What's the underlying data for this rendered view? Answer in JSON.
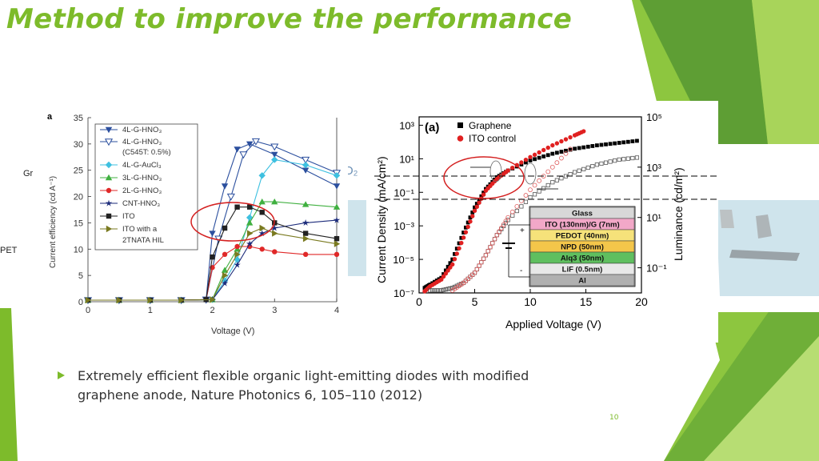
{
  "slide": {
    "title": "Method to improve the performance",
    "bullet": "Extremely efficient flexible organic light-emitting diodes with modified\ngraphene anode, Nature Photonics 6, 105–110 (2012)",
    "page_number": "10",
    "fragments": {
      "left_gr": "Gr",
      "left_pet": "PET",
      "o2": "O₂"
    }
  },
  "colors": {
    "accent": "#7DBB2B",
    "dark_green": "#4E8A2E",
    "annotation_red": "#D42020"
  },
  "left_chart": {
    "panel_label": "a",
    "xlabel": "Voltage (V)",
    "ylabel": "Current efficiency (cd A⁻¹)",
    "x_ticks": [
      "0",
      "1",
      "2",
      "3",
      "4"
    ],
    "y_ticks": [
      "0",
      "5",
      "10",
      "15",
      "20",
      "25",
      "30",
      "35"
    ],
    "legend": [
      "4L-G-HNO₃",
      "4L-G-HNO₃",
      "(C545T: 0.5%)",
      "4L-G-AuCl₃",
      "3L-G-HNO₃",
      "2L-G-HNO₃",
      "CNT-HNO₃",
      "ITO",
      "ITO with a",
      "2TNATA HIL"
    ]
  },
  "right_chart": {
    "panel_label": "(a)",
    "xlabel": "Applied Voltage (V)",
    "ylabel_left": "Current Density (mA/cm²)",
    "ylabel_right": "Luminance (cd/m²)",
    "x_ticks": [
      "0",
      "5",
      "10",
      "15",
      "20"
    ],
    "y_left_ticks": [
      "10³",
      "10¹",
      "10⁻¹",
      "10⁻³",
      "10⁻⁵",
      "10⁻⁷"
    ],
    "y_right_ticks": [
      "10⁵",
      "10³",
      "10¹",
      "10⁻¹"
    ],
    "legend": [
      "Graphene",
      "ITO control"
    ],
    "stack_layers": [
      "Glass",
      "ITO (130nm)/G (7nm)",
      "PEDOT (40nm)",
      "NPD (50nm)",
      "Alq3 (50nm)",
      "LiF (0.5nm)",
      "Al"
    ],
    "plus": "+",
    "minus": "-"
  },
  "chart_data": [
    {
      "type": "line",
      "xlabel": "Voltage (V)",
      "ylabel": "Current efficiency (cd A⁻¹)",
      "xlim": [
        0,
        4
      ],
      "ylim": [
        0,
        35
      ],
      "series": [
        {
          "name": "4L-G-HNO₃",
          "color": "#2B4F9E",
          "marker": "tri-down",
          "x": [
            0,
            0.5,
            1,
            1.5,
            1.9,
            2.0,
            2.2,
            2.4,
            2.6,
            3.0,
            3.5,
            4.0
          ],
          "y": [
            0.3,
            0.3,
            0.3,
            0.3,
            0.4,
            13,
            22,
            29,
            30,
            28,
            25,
            22
          ]
        },
        {
          "name": "4L-G-HNO₃ (C545T: 0.5%)",
          "color": "#2B4F9E",
          "marker": "tri-down-open",
          "x": [
            0,
            0.5,
            1,
            1.5,
            1.9,
            2.1,
            2.3,
            2.5,
            2.7,
            3.0,
            3.5,
            4.0
          ],
          "y": [
            0.3,
            0.3,
            0.3,
            0.3,
            0.4,
            12,
            20,
            28,
            30.5,
            29.5,
            27,
            24.5
          ]
        },
        {
          "name": "4L-G-AuCl₃",
          "color": "#3EC0E0",
          "marker": "diamond",
          "x": [
            0,
            0.5,
            1,
            1.5,
            2.0,
            2.2,
            2.4,
            2.6,
            2.8,
            3.0,
            3.5,
            4.0
          ],
          "y": [
            0.3,
            0.3,
            0.3,
            0.3,
            0.4,
            4,
            8,
            16,
            24,
            27,
            26,
            24
          ]
        },
        {
          "name": "3L-G-HNO₃",
          "color": "#40B040",
          "marker": "tri-up",
          "x": [
            0,
            0.5,
            1,
            1.5,
            2.0,
            2.2,
            2.4,
            2.6,
            2.8,
            3.0,
            3.5,
            4.0
          ],
          "y": [
            0.3,
            0.3,
            0.3,
            0.3,
            0.4,
            6,
            10,
            15,
            19,
            19,
            18.5,
            18
          ]
        },
        {
          "name": "2L-G-HNO₃",
          "color": "#E02828",
          "marker": "circle",
          "x": [
            0,
            0.5,
            1,
            1.5,
            1.9,
            2.0,
            2.2,
            2.4,
            2.6,
            2.8,
            3.0,
            3.5,
            4.0
          ],
          "y": [
            0.3,
            0.3,
            0.3,
            0.3,
            0.4,
            6.5,
            9,
            10.5,
            10.5,
            10,
            9.5,
            9,
            9
          ]
        },
        {
          "name": "CNT-HNO₃",
          "color": "#1B2A7A",
          "marker": "star",
          "x": [
            0,
            0.5,
            1,
            1.5,
            2.0,
            2.2,
            2.4,
            2.6,
            2.8,
            3.0,
            3.5,
            4.0
          ],
          "y": [
            0.3,
            0.3,
            0.3,
            0.3,
            0.4,
            3.5,
            7,
            11,
            13,
            14,
            15,
            15.5
          ]
        },
        {
          "name": "ITO",
          "color": "#222222",
          "marker": "square",
          "x": [
            0,
            0.5,
            1,
            1.5,
            1.9,
            2.0,
            2.2,
            2.4,
            2.6,
            2.8,
            3.0,
            3.5,
            4.0
          ],
          "y": [
            0.3,
            0.3,
            0.3,
            0.3,
            0.4,
            8.5,
            14,
            18,
            18,
            17,
            15,
            13,
            12
          ]
        },
        {
          "name": "ITO with a 2TNATA HIL",
          "color": "#7A7A20",
          "marker": "tri-right",
          "x": [
            0,
            0.5,
            1,
            1.5,
            2.0,
            2.2,
            2.4,
            2.6,
            2.8,
            3.0,
            3.5,
            4.0
          ],
          "y": [
            0.3,
            0.3,
            0.3,
            0.3,
            0.4,
            5,
            9,
            13,
            14,
            13,
            12,
            11
          ]
        }
      ]
    },
    {
      "type": "scatter",
      "xlabel": "Applied Voltage (V)",
      "ylabel": "Current Density (mA/cm²)",
      "y2label": "Luminance (cd/m²)",
      "xlim": [
        0,
        20
      ],
      "ylim_log10": [
        -7,
        3.5
      ],
      "y2lim_log10": [
        -2,
        5
      ],
      "series": [
        {
          "name": "Graphene",
          "color": "#000000",
          "filled": true,
          "axis": "left",
          "x": [
            0.5,
            1,
            2,
            3,
            4,
            5,
            6,
            7,
            8,
            10,
            12,
            14,
            16,
            18,
            20
          ],
          "y_log10": [
            -6.7,
            -6.5,
            -6.1,
            -5.0,
            -3.4,
            -1.9,
            -0.8,
            -0.1,
            0.3,
            0.9,
            1.3,
            1.6,
            1.8,
            1.95,
            2.1
          ]
        },
        {
          "name": "ITO control",
          "color": "#E02020",
          "filled": true,
          "axis": "left",
          "x": [
            0.5,
            1,
            2,
            3,
            4,
            5,
            6,
            7,
            8,
            10,
            12,
            14,
            15
          ],
          "y_log10": [
            -6.9,
            -6.6,
            -6.2,
            -5.3,
            -3.7,
            -2.1,
            -0.9,
            -0.2,
            0.3,
            1.1,
            1.8,
            2.4,
            2.7
          ]
        },
        {
          "name": "Graphene (luminance)",
          "color": "#555555",
          "filled": false,
          "axis": "right",
          "x": [
            1,
            2,
            3,
            4,
            5,
            6,
            7,
            8,
            10,
            12,
            14,
            16,
            18,
            20
          ],
          "y_log10": [
            -1.9,
            -1.9,
            -1.8,
            -1.6,
            -1.2,
            -0.5,
            0.3,
            0.9,
            1.8,
            2.4,
            2.8,
            3.1,
            3.3,
            3.4
          ]
        },
        {
          "name": "ITO control (luminance)",
          "color": "#E06060",
          "filled": false,
          "axis": "right",
          "x": [
            3,
            4,
            5,
            6,
            7,
            8,
            10,
            12,
            14
          ],
          "y_log10": [
            -1.9,
            -1.6,
            -1.2,
            -0.5,
            0.3,
            1.0,
            2.1,
            3.0,
            3.9
          ]
        }
      ]
    }
  ]
}
